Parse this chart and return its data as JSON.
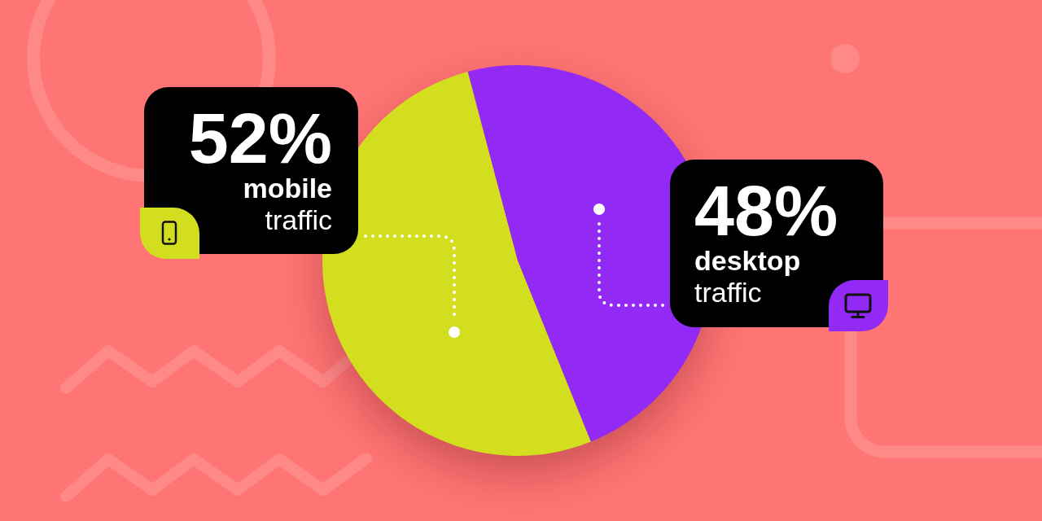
{
  "chart_data": {
    "type": "pie",
    "categories": [
      "mobile traffic",
      "desktop traffic"
    ],
    "values": [
      52,
      48
    ],
    "colors": [
      "#d3de1e",
      "#9229f5"
    ],
    "value_labels": [
      "52%",
      "48%"
    ]
  }
}
